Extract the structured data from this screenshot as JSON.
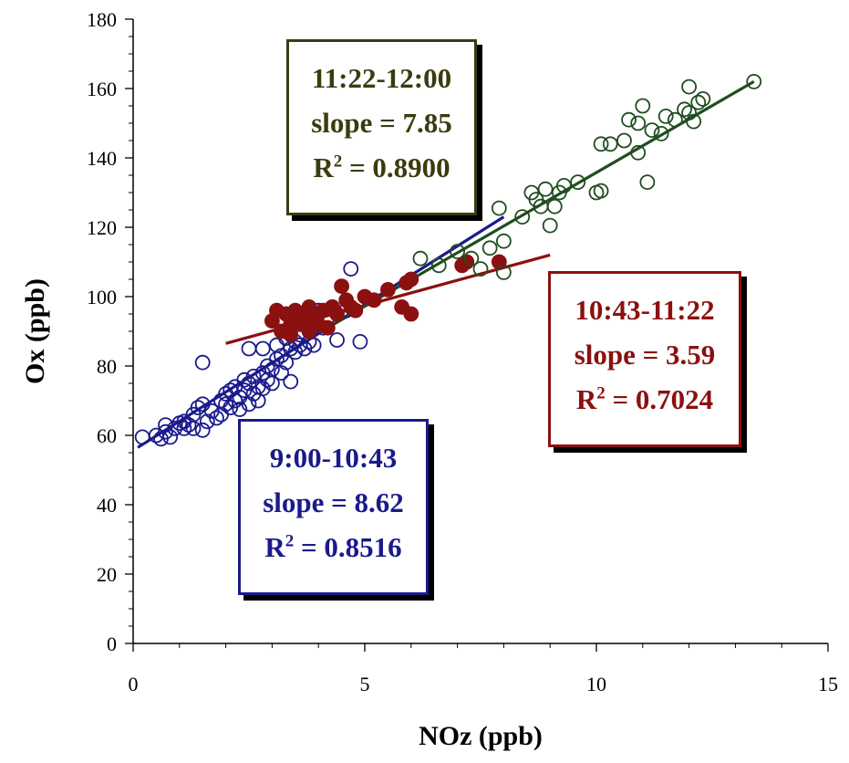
{
  "chart_data": {
    "type": "scatter",
    "xlabel": "NOz (ppb)",
    "ylabel": "Ox (ppb)",
    "xlim": [
      0,
      15
    ],
    "ylim": [
      0,
      180
    ],
    "xticks": [
      0,
      5,
      10,
      15
    ],
    "yticks": [
      0,
      20,
      40,
      60,
      80,
      100,
      120,
      140,
      160,
      180
    ],
    "grid": false,
    "series": [
      {
        "marker": "open-circle",
        "color": "#1a1a8c",
        "points": [
          [
            0.2,
            59.5
          ],
          [
            0.5,
            60
          ],
          [
            0.6,
            59
          ],
          [
            0.7,
            61
          ],
          [
            0.7,
            63
          ],
          [
            0.8,
            59.5
          ],
          [
            0.9,
            62
          ],
          [
            1.0,
            63.5
          ],
          [
            1.1,
            62
          ],
          [
            1.1,
            64
          ],
          [
            1.2,
            63
          ],
          [
            1.3,
            66
          ],
          [
            1.3,
            62
          ],
          [
            1.4,
            68
          ],
          [
            1.5,
            69
          ],
          [
            1.5,
            61.5
          ],
          [
            1.6,
            64
          ],
          [
            1.7,
            67
          ],
          [
            1.8,
            65
          ],
          [
            1.9,
            66
          ],
          [
            1.9,
            70
          ],
          [
            2.0,
            72
          ],
          [
            2.0,
            69
          ],
          [
            2.1,
            73
          ],
          [
            2.1,
            68
          ],
          [
            2.2,
            70
          ],
          [
            2.2,
            74
          ],
          [
            2.3,
            67.5
          ],
          [
            2.3,
            71
          ],
          [
            2.4,
            73
          ],
          [
            2.4,
            76
          ],
          [
            2.5,
            69
          ],
          [
            2.5,
            75
          ],
          [
            2.6,
            72
          ],
          [
            2.6,
            77
          ],
          [
            2.7,
            74
          ],
          [
            2.7,
            70
          ],
          [
            2.8,
            78
          ],
          [
            2.8,
            73.5
          ],
          [
            2.9,
            76
          ],
          [
            2.9,
            80
          ],
          [
            3.0,
            79
          ],
          [
            3.0,
            75
          ],
          [
            3.1,
            82
          ],
          [
            3.1,
            86
          ],
          [
            3.2,
            78
          ],
          [
            3.2,
            83
          ],
          [
            3.3,
            88
          ],
          [
            3.3,
            81
          ],
          [
            3.4,
            85
          ],
          [
            3.4,
            75.5
          ],
          [
            3.5,
            87
          ],
          [
            3.5,
            84
          ],
          [
            3.6,
            89
          ],
          [
            3.6,
            86
          ],
          [
            3.7,
            92
          ],
          [
            3.7,
            85
          ],
          [
            3.8,
            90
          ],
          [
            3.8,
            87
          ],
          [
            3.9,
            93
          ],
          [
            3.9,
            86
          ],
          [
            4.0,
            96
          ],
          [
            4.1,
            91
          ],
          [
            4.2,
            94
          ],
          [
            4.3,
            97
          ],
          [
            4.4,
            87.5
          ],
          [
            2.5,
            85
          ],
          [
            2.8,
            85
          ],
          [
            1.5,
            81
          ],
          [
            4.6,
            96
          ],
          [
            4.9,
            87
          ],
          [
            4.7,
            108
          ]
        ]
      },
      {
        "marker": "filled-circle",
        "color": "#8b1010",
        "points": [
          [
            3.0,
            93
          ],
          [
            3.1,
            96
          ],
          [
            3.2,
            90
          ],
          [
            3.3,
            95
          ],
          [
            3.4,
            92
          ],
          [
            3.5,
            96
          ],
          [
            3.6,
            92
          ],
          [
            3.7,
            93
          ],
          [
            3.8,
            90
          ],
          [
            3.9,
            94
          ],
          [
            4.0,
            92
          ],
          [
            4.1,
            96
          ],
          [
            4.2,
            91
          ],
          [
            4.3,
            97
          ],
          [
            4.4,
            95
          ],
          [
            4.5,
            103
          ],
          [
            4.6,
            99
          ],
          [
            4.7,
            97
          ],
          [
            4.8,
            96
          ],
          [
            5.0,
            100
          ],
          [
            5.2,
            99
          ],
          [
            5.5,
            102
          ],
          [
            5.9,
            104
          ],
          [
            6.0,
            105
          ],
          [
            6.0,
            95
          ],
          [
            5.8,
            97
          ],
          [
            7.1,
            109
          ],
          [
            7.2,
            110
          ],
          [
            7.9,
            110
          ],
          [
            3.4,
            89
          ],
          [
            3.6,
            94
          ],
          [
            3.8,
            97
          ],
          [
            4.0,
            95
          ]
        ]
      },
      {
        "marker": "open-circle",
        "color": "#1f4d1f",
        "points": [
          [
            6.2,
            111
          ],
          [
            6.6,
            109
          ],
          [
            7.0,
            113
          ],
          [
            7.3,
            111
          ],
          [
            7.5,
            108
          ],
          [
            7.7,
            114
          ],
          [
            7.9,
            125.5
          ],
          [
            8.0,
            116
          ],
          [
            8.0,
            107
          ],
          [
            8.4,
            123
          ],
          [
            8.6,
            130
          ],
          [
            8.7,
            128
          ],
          [
            8.8,
            126
          ],
          [
            8.9,
            131
          ],
          [
            9.0,
            120.5
          ],
          [
            9.1,
            126
          ],
          [
            9.2,
            130
          ],
          [
            9.3,
            132
          ],
          [
            9.6,
            133
          ],
          [
            10.0,
            130
          ],
          [
            10.1,
            130.5
          ],
          [
            10.1,
            144
          ],
          [
            10.3,
            144
          ],
          [
            10.6,
            145
          ],
          [
            10.7,
            151
          ],
          [
            10.9,
            141.5
          ],
          [
            10.9,
            150
          ],
          [
            11.0,
            155
          ],
          [
            11.1,
            133
          ],
          [
            11.2,
            148
          ],
          [
            11.4,
            147
          ],
          [
            11.5,
            152
          ],
          [
            11.7,
            151
          ],
          [
            11.9,
            154
          ],
          [
            12.0,
            160.5
          ],
          [
            12.1,
            150.5
          ],
          [
            12.2,
            156
          ],
          [
            12.3,
            157
          ],
          [
            13.4,
            162
          ],
          [
            12.0,
            153
          ]
        ]
      }
    ],
    "fits": [
      {
        "color": "#1a1a8c",
        "x": [
          0.1,
          8.0
        ],
        "y": [
          56.5,
          123
        ]
      },
      {
        "color": "#8b1010",
        "x": [
          2.0,
          9.0
        ],
        "y": [
          86.5,
          112
        ]
      },
      {
        "color": "#1f4d1f",
        "x": [
          4.0,
          13.4
        ],
        "y": [
          89.5,
          162
        ]
      }
    ],
    "annotations": [
      {
        "color": "#3b3b10",
        "period": "11:22-12:00",
        "slope": "slope = 7.85",
        "r2_prefix": "R",
        "r2_sup": "2",
        "r2_value": " = 0.8900"
      },
      {
        "color": "#8b1010",
        "period": "10:43-11:22",
        "slope": "slope = 3.59",
        "r2_prefix": "R",
        "r2_sup": "2",
        "r2_value": " = 0.7024"
      },
      {
        "color": "#1a1a8c",
        "period": "9:00-10:43",
        "slope": "slope = 8.62",
        "r2_prefix": "R",
        "r2_sup": "2",
        "r2_value": " = 0.8516"
      }
    ]
  }
}
